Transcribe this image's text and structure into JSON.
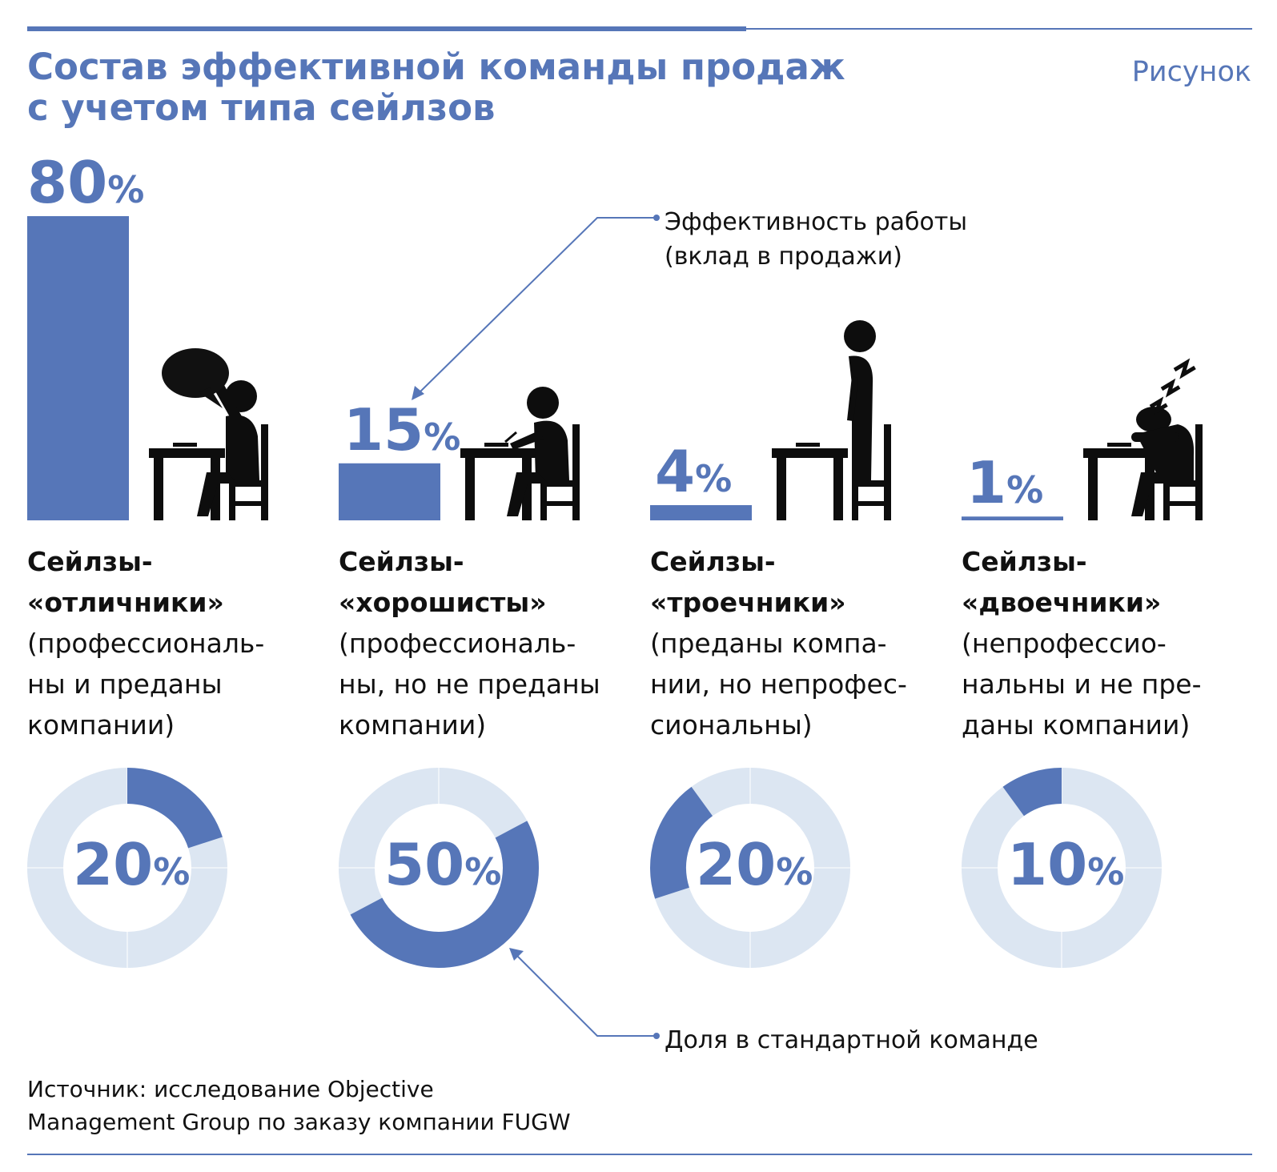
{
  "title": "Состав эффективной команды продаж\nс учетом типа сейлзов",
  "figure_label": "Рисунок",
  "callouts": {
    "efficiency": "Эффективность работы\n(вклад в продажи)",
    "share": "Доля в стандартной команде"
  },
  "source": "Источник: исследование Objective\nManagement Group по заказу компании FUGW",
  "colors": {
    "accent": "#5676b8",
    "ring_bg": "#dce6f2",
    "figure": "#0d0d0d",
    "bubble": "#111111"
  },
  "icons": [
    "speech-bubble-icon",
    "raised-hand-person-icon",
    "writing-person-icon",
    "standing-person-icon",
    "sleeping-person-icon",
    "zzz-icon",
    "desk-icon",
    "chair-icon"
  ],
  "chart_data": [
    {
      "type": "bar",
      "series_label": "Эффективность работы (вклад в продажи)",
      "categories": [
        "Сейлзы-«отличники»",
        "Сейлзы-«хорошисты»",
        "Сейлзы-«троечники»",
        "Сейлзы-«двоечники»"
      ],
      "values": [
        80,
        15,
        4,
        1
      ],
      "labels": [
        "80",
        "15",
        "4",
        "1"
      ],
      "unit": "%",
      "ylim": [
        0,
        80
      ],
      "grid": false
    },
    {
      "type": "pie",
      "variant": "donut",
      "series_label": "Доля в стандартной команде",
      "categories": [
        "Сейлзы-«отличники»",
        "Сейлзы-«хорошисты»",
        "Сейлзы-«троечники»",
        "Сейлзы-«двоечники»"
      ],
      "values": [
        20,
        50,
        20,
        10
      ],
      "labels": [
        "20",
        "50",
        "20",
        "10"
      ],
      "unit": "%"
    }
  ],
  "categories": [
    {
      "name": "Сейлзы-\n«отличники»",
      "desc": "(профессиональ-\nны и преданы\nкомпании)"
    },
    {
      "name": "Сейлзы-\n«хорошисты»",
      "desc": "(профессиональ-\nны, но не преданы\nкомпании)"
    },
    {
      "name": "Сейлзы-\n«троечники»",
      "desc": "(преданы компа-\nнии, но непрофес-\nсиональны)"
    },
    {
      "name": "Сейлзы-\n«двоечники»",
      "desc": "(непрофессио-\nнальны и не пре-\nданы компании)"
    }
  ]
}
